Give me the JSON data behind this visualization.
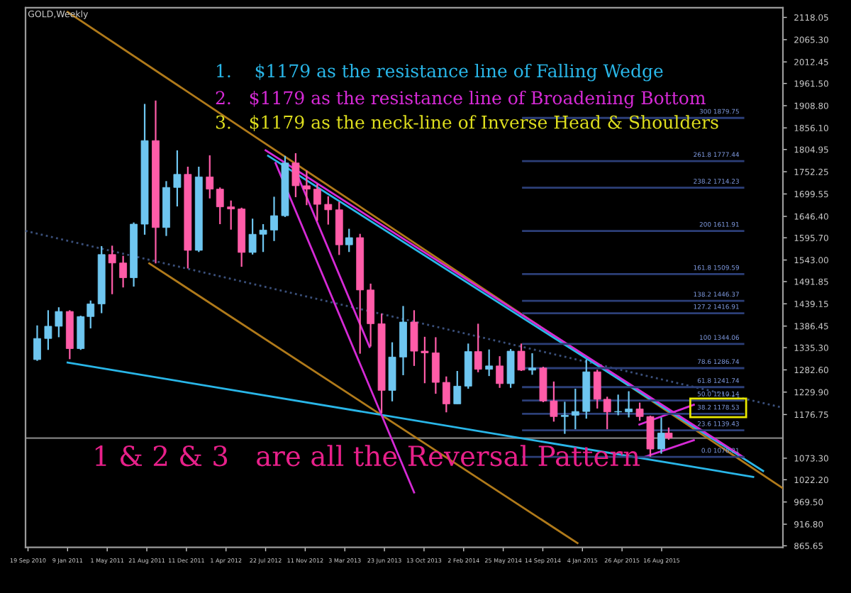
{
  "chart_data": {
    "type": "candlestick",
    "title": "GOLD,Weekly",
    "x": [
      "2010-10-15",
      "2010-11-15",
      "2010-12-15",
      "2011-01-15",
      "2011-02-15",
      "2011-03-15",
      "2011-04-15",
      "2011-05-15",
      "2011-06-15",
      "2011-07-15",
      "2011-08-15",
      "2011-09-15",
      "2011-10-15",
      "2011-11-15",
      "2011-12-15",
      "2012-01-15",
      "2012-02-15",
      "2012-03-15",
      "2012-04-15",
      "2012-05-15",
      "2012-06-15",
      "2012-07-15",
      "2012-08-15",
      "2012-09-15",
      "2012-10-15",
      "2012-11-15",
      "2012-12-15",
      "2013-01-15",
      "2013-02-15",
      "2013-03-15",
      "2013-04-15",
      "2013-05-15",
      "2013-06-15",
      "2013-07-15",
      "2013-08-15",
      "2013-09-15",
      "2013-10-15",
      "2013-11-15",
      "2013-12-15",
      "2014-01-15",
      "2014-02-15",
      "2014-03-15",
      "2014-04-15",
      "2014-05-15",
      "2014-06-15",
      "2014-07-15",
      "2014-08-15",
      "2014-09-15",
      "2014-10-15",
      "2014-11-15",
      "2014-12-15",
      "2015-01-15",
      "2015-02-15",
      "2015-03-15",
      "2015-04-15",
      "2015-05-15",
      "2015-06-15",
      "2015-07-15",
      "2015-08-15",
      "2015-09-05"
    ],
    "ohlc": [
      [
        1307,
        1388,
        1304,
        1357
      ],
      [
        1357,
        1424,
        1330,
        1386
      ],
      [
        1386,
        1431,
        1360,
        1421
      ],
      [
        1421,
        1424,
        1308,
        1333
      ],
      [
        1333,
        1411,
        1330,
        1409
      ],
      [
        1409,
        1447,
        1381,
        1439
      ],
      [
        1439,
        1576,
        1417,
        1556
      ],
      [
        1556,
        1577,
        1462,
        1536
      ],
      [
        1536,
        1553,
        1478,
        1501
      ],
      [
        1501,
        1632,
        1480,
        1628
      ],
      [
        1628,
        1913,
        1603,
        1826
      ],
      [
        1826,
        1921,
        1535,
        1620
      ],
      [
        1620,
        1730,
        1600,
        1715
      ],
      [
        1715,
        1803,
        1670,
        1746
      ],
      [
        1746,
        1764,
        1523,
        1566
      ],
      [
        1566,
        1764,
        1562,
        1740
      ],
      [
        1740,
        1791,
        1689,
        1711
      ],
      [
        1711,
        1715,
        1628,
        1669
      ],
      [
        1669,
        1684,
        1615,
        1664
      ],
      [
        1664,
        1667,
        1527,
        1561
      ],
      [
        1561,
        1641,
        1556,
        1604
      ],
      [
        1604,
        1628,
        1562,
        1614
      ],
      [
        1614,
        1693,
        1588,
        1648
      ],
      [
        1648,
        1790,
        1645,
        1773
      ],
      [
        1773,
        1796,
        1692,
        1719
      ],
      [
        1719,
        1755,
        1673,
        1711
      ],
      [
        1711,
        1723,
        1636,
        1675
      ],
      [
        1675,
        1694,
        1627,
        1662
      ],
      [
        1662,
        1681,
        1555,
        1579
      ],
      [
        1579,
        1617,
        1562,
        1596
      ],
      [
        1596,
        1605,
        1321,
        1472
      ],
      [
        1472,
        1487,
        1338,
        1392
      ],
      [
        1392,
        1416,
        1180,
        1234
      ],
      [
        1234,
        1348,
        1208,
        1313
      ],
      [
        1313,
        1434,
        1270,
        1396
      ],
      [
        1396,
        1424,
        1292,
        1327
      ],
      [
        1327,
        1361,
        1251,
        1323
      ],
      [
        1323,
        1360,
        1226,
        1253
      ],
      [
        1253,
        1267,
        1182,
        1202
      ],
      [
        1202,
        1280,
        1202,
        1244
      ],
      [
        1244,
        1345,
        1238,
        1326
      ],
      [
        1326,
        1392,
        1277,
        1284
      ],
      [
        1284,
        1331,
        1268,
        1292
      ],
      [
        1292,
        1315,
        1240,
        1250
      ],
      [
        1250,
        1332,
        1240,
        1327
      ],
      [
        1327,
        1345,
        1280,
        1282
      ],
      [
        1282,
        1322,
        1271,
        1287
      ],
      [
        1287,
        1290,
        1206,
        1209
      ],
      [
        1209,
        1255,
        1160,
        1172
      ],
      [
        1172,
        1207,
        1131,
        1175
      ],
      [
        1175,
        1238,
        1142,
        1184
      ],
      [
        1184,
        1307,
        1167,
        1278
      ],
      [
        1278,
        1283,
        1191,
        1213
      ],
      [
        1213,
        1219,
        1142,
        1183
      ],
      [
        1183,
        1224,
        1175,
        1183
      ],
      [
        1183,
        1232,
        1170,
        1190
      ],
      [
        1190,
        1205,
        1162,
        1172
      ],
      [
        1172,
        1174,
        1077,
        1095
      ],
      [
        1095,
        1170,
        1084,
        1133
      ],
      [
        1133,
        1146,
        1117,
        1121
      ]
    ],
    "colors": [
      "#6ec6f0",
      "#6ec6f0",
      "#6ec6f0",
      "#ff5ca8",
      "#6ec6f0",
      "#6ec6f0",
      "#6ec6f0",
      "#ff5ca8",
      "#ff5ca8",
      "#6ec6f0",
      "#6ec6f0",
      "#ff5ca8",
      "#6ec6f0",
      "#6ec6f0",
      "#ff5ca8",
      "#6ec6f0",
      "#ff5ca8",
      "#ff5ca8",
      "#ff5ca8",
      "#ff5ca8",
      "#6ec6f0",
      "#6ec6f0",
      "#6ec6f0",
      "#6ec6f0",
      "#ff5ca8",
      "#ff5ca8",
      "#ff5ca8",
      "#ff5ca8",
      "#ff5ca8",
      "#6ec6f0",
      "#ff5ca8",
      "#ff5ca8",
      "#ff5ca8",
      "#6ec6f0",
      "#6ec6f0",
      "#ff5ca8",
      "#ff5ca8",
      "#ff5ca8",
      "#ff5ca8",
      "#6ec6f0",
      "#6ec6f0",
      "#ff5ca8",
      "#6ec6f0",
      "#ff5ca8",
      "#6ec6f0",
      "#ff5ca8",
      "#6ec6f0",
      "#ff5ca8",
      "#ff5ca8",
      "#6ec6f0",
      "#6ec6f0",
      "#6ec6f0",
      "#ff5ca8",
      "#ff5ca8",
      "#6ec6f0",
      "#6ec6f0",
      "#ff5ca8",
      "#ff5ca8",
      "#6ec6f0",
      "#ff5ca8"
    ],
    "series": [
      {
        "type": "line",
        "color": "#b07a1a",
        "x": [
          "2011-01-09",
          "2016-07-24"
        ],
        "values": [
          2131,
          1002
        ]
      },
      {
        "type": "line",
        "color": "#b07a1a",
        "x": [
          "2011-08-28",
          "2014-12-21"
        ],
        "values": [
          1535,
          872
        ]
      },
      {
        "type": "line",
        "color": "#3a4f7a",
        "line_style": "dotted",
        "x": [
          "2010-09-12",
          "2016-07-24"
        ],
        "values": [
          1612,
          1193
        ]
      },
      {
        "type": "line",
        "color": "#29b6e8",
        "x": [
          "2011-01-09",
          "2016-05-01"
        ],
        "values": [
          1300,
          1029
        ]
      },
      {
        "type": "line",
        "color": "#29b6e8",
        "x": [
          "2012-07-29",
          "2016-05-29"
        ],
        "values": [
          1790,
          1043
        ]
      },
      {
        "type": "line",
        "color": "#d62ad6",
        "x": [
          "2012-07-22",
          "2016-04-03"
        ],
        "values": [
          1803,
          1076
        ]
      },
      {
        "type": "line",
        "color": "#d62ad6",
        "x": [
          "2012-08-19",
          "2013-09-15"
        ],
        "values": [
          1773,
          992
        ]
      },
      {
        "type": "line",
        "color": "#d62ad6",
        "x": [
          "2012-10-14",
          "2013-05-12"
        ],
        "values": [
          1756,
          1337
        ]
      },
      {
        "type": "line",
        "color": "#d62ad6",
        "x": [
          "2015-06-14",
          "2015-11-15"
        ],
        "values": [
          1153,
          1200
        ]
      },
      {
        "type": "line",
        "color": "#d62ad6",
        "x": [
          "2015-06-28",
          "2015-11-15"
        ],
        "values": [
          1076,
          1116
        ]
      },
      {
        "type": "line",
        "color": "#2c3f78",
        "x": [
          "2014-07-20",
          "2016-04-03"
        ],
        "values": [
          1879.75,
          1879.75
        ]
      },
      {
        "type": "line",
        "color": "#2c3f78",
        "x": [
          "2014-07-20",
          "2016-04-03"
        ],
        "values": [
          1777.44,
          1777.44
        ]
      },
      {
        "type": "line",
        "color": "#2c3f78",
        "x": [
          "2014-07-20",
          "2016-04-03"
        ],
        "values": [
          1714.23,
          1714.23
        ]
      },
      {
        "type": "line",
        "color": "#2c3f78",
        "x": [
          "2014-07-20",
          "2016-04-03"
        ],
        "values": [
          1611.91,
          1611.91
        ]
      },
      {
        "type": "line",
        "color": "#2c3f78",
        "x": [
          "2014-07-20",
          "2016-04-03"
        ],
        "values": [
          1509.59,
          1509.59
        ]
      },
      {
        "type": "line",
        "color": "#2c3f78",
        "x": [
          "2014-07-20",
          "2016-04-03"
        ],
        "values": [
          1446.37,
          1446.37
        ]
      },
      {
        "type": "line",
        "color": "#2c3f78",
        "x": [
          "2014-07-20",
          "2016-04-03"
        ],
        "values": [
          1416.91,
          1416.91
        ]
      },
      {
        "type": "line",
        "color": "#2c3f78",
        "x": [
          "2014-07-20",
          "2016-04-03"
        ],
        "values": [
          1344.06,
          1344.06
        ]
      },
      {
        "type": "line",
        "color": "#2c3f78",
        "x": [
          "2014-07-20",
          "2016-04-03"
        ],
        "values": [
          1286.74,
          1286.74
        ]
      },
      {
        "type": "line",
        "color": "#2c3f78",
        "x": [
          "2014-07-20",
          "2016-04-03"
        ],
        "values": [
          1241.74,
          1241.74
        ]
      },
      {
        "type": "line",
        "color": "#2c3f78",
        "x": [
          "2014-07-20",
          "2016-04-03"
        ],
        "values": [
          1210.14,
          1210.14
        ]
      },
      {
        "type": "line",
        "color": "#2c3f78",
        "x": [
          "2014-07-20",
          "2016-04-03"
        ],
        "values": [
          1178.53,
          1178.53
        ]
      },
      {
        "type": "line",
        "color": "#2c3f78",
        "x": [
          "2014-07-20",
          "2016-04-03"
        ],
        "values": [
          1139.43,
          1139.43
        ]
      },
      {
        "type": "line",
        "color": "#2c3f78",
        "x": [
          "2014-07-20",
          "2016-04-03"
        ],
        "values": [
          1076.21,
          1076.21
        ]
      }
    ],
    "ref_lines": [
      {
        "axis": "y",
        "value": 1121,
        "color": "#808080"
      }
    ],
    "annotations": [
      "1.    $1179 as the resistance line of Falling Wedge",
      "2.   $1179 as the resistance line of Broadening Bottom",
      "3.   $1179 as the neck-line of Inverse Head & Shoulders",
      "1 & 2 & 3   are all the Reversal Pattern",
      {
        "text": "300 1879.75",
        "x": "2016-04-03",
        "y": 1879.75
      },
      {
        "text": "261.8 1777.44",
        "x": "2016-04-03",
        "y": 1777.44
      },
      {
        "text": "238.2 1714.23",
        "x": "2016-04-03",
        "y": 1714.23
      },
      {
        "text": "200 1611.91",
        "x": "2016-04-03",
        "y": 1611.91
      },
      {
        "text": "161.8 1509.59",
        "x": "2016-04-03",
        "y": 1509.59
      },
      {
        "text": "138.2 1446.37",
        "x": "2016-04-03",
        "y": 1446.37
      },
      {
        "text": "127.2 1416.91",
        "x": "2016-04-03",
        "y": 1416.91
      },
      {
        "text": "100 1344.06",
        "x": "2016-04-03",
        "y": 1344.06
      },
      {
        "text": "78.6 1286.74",
        "x": "2016-04-03",
        "y": 1286.74
      },
      {
        "text": "61.8 1241.74",
        "x": "2016-04-03",
        "y": 1241.74
      },
      {
        "text": "50.0 1210.14",
        "x": "2016-04-03",
        "y": 1210.14
      },
      {
        "text": "38.2 1178.53",
        "x": "2016-04-03",
        "y": 1178.53
      },
      {
        "text": "23.6 1139.43",
        "x": "2016-04-03",
        "y": 1139.43
      },
      {
        "text": "0.0 1076.21",
        "x": "2016-04-03",
        "y": 1076.21
      }
    ],
    "xlim": [
      "2010-09-12",
      "2016-07-24"
    ],
    "xticks": [
      {
        "value": "2010-09-19",
        "label": "19 Sep 2010"
      },
      {
        "value": "2011-01-09",
        "label": "9 Jan 2011"
      },
      {
        "value": "2011-05-01",
        "label": "1 May 2011"
      },
      {
        "value": "2011-08-21",
        "label": "21 Aug 2011"
      },
      {
        "value": "2011-12-11",
        "label": "11 Dec 2011"
      },
      {
        "value": "2012-04-01",
        "label": "1 Apr 2012"
      },
      {
        "value": "2012-07-22",
        "label": "22 Jul 2012"
      },
      {
        "value": "2012-11-11",
        "label": "11 Nov 2012"
      },
      {
        "value": "2013-03-03",
        "label": "3 Mar 2013"
      },
      {
        "value": "2013-06-23",
        "label": "23 Jun 2013"
      },
      {
        "value": "2013-10-13",
        "label": "13 Oct 2013"
      },
      {
        "value": "2014-02-02",
        "label": "2 Feb 2014"
      },
      {
        "value": "2014-05-25",
        "label": "25 May 2014"
      },
      {
        "value": "2014-09-14",
        "label": "14 Sep 2014"
      },
      {
        "value": "2015-01-04",
        "label": "4 Jan 2015"
      },
      {
        "value": "2015-04-26",
        "label": "26 Apr 2015"
      },
      {
        "value": "2015-08-16",
        "label": "16 Aug 2015"
      }
    ],
    "ylim": [
      862,
      2141
    ],
    "yticks": [
      2118.05,
      {
        "value": 2065.3,
        "label": "2065.30"
      },
      2012.45,
      {
        "value": 1961.5,
        "label": "1961.50"
      },
      {
        "value": 1908.8,
        "label": "1908.80"
      },
      {
        "value": 1856.1,
        "label": "1856.10"
      },
      1804.95,
      1752.25,
      1699.55,
      {
        "value": 1646.4,
        "label": "1646.40"
      },
      {
        "value": 1595.7,
        "label": "1595.70"
      },
      {
        "value": 1543,
        "label": "1543.00"
      },
      1491.85,
      1439.15,
      1386.45,
      {
        "value": 1335.3,
        "label": "1335.30"
      },
      {
        "value": 1282.6,
        "label": "1282.60"
      },
      {
        "value": 1229.9,
        "label": "1229.90"
      },
      1176.75,
      {
        "value": 1073.3,
        "label": "1073.30"
      },
      {
        "value": 1022.2,
        "label": "1022.20"
      },
      {
        "value": 969.5,
        "label": "969.50"
      },
      {
        "value": 916.8,
        "label": "916.80"
      },
      865.65
    ],
    "grid": false
  }
}
